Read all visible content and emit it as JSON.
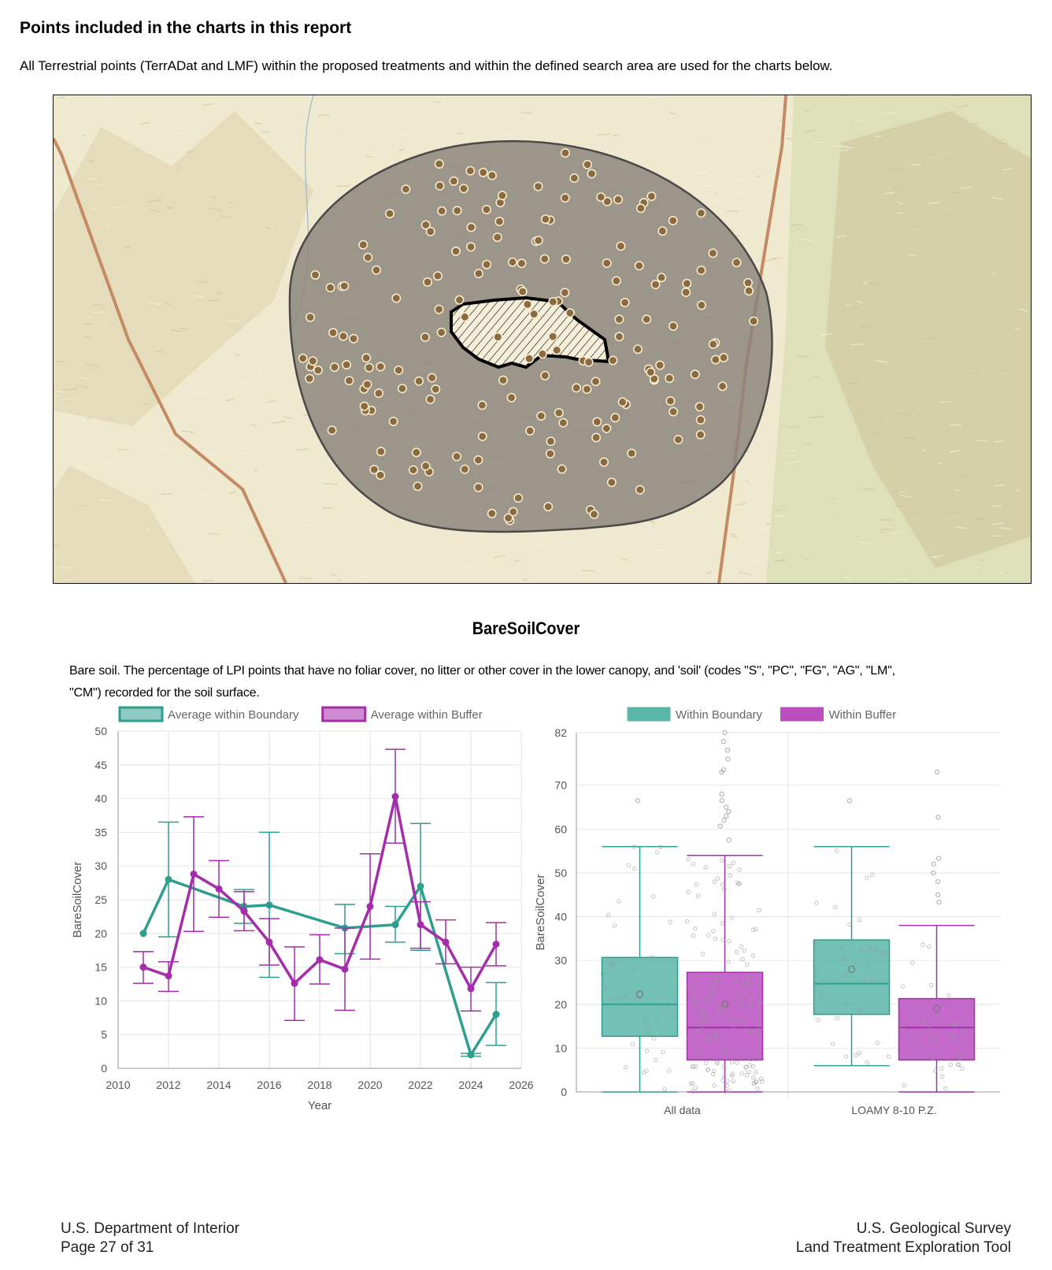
{
  "section": {
    "heading": "Points included in the charts in this report",
    "intro": "All Terrestrial points (TerrADat and LMF) within the proposed treatments and within the defined search area are used for the charts below."
  },
  "map": {
    "colors": {
      "land": "#efe9cf",
      "terrain_light": "#e2d8b6",
      "terrain_dark": "#cbbd94",
      "green_area": "#d6dcae",
      "road": "#c48a63",
      "buffer_fill": "#8a847a",
      "buffer_stroke": "#4a4a4a",
      "point_fill": "#8a6a3e",
      "point_stroke": "#f4ead0",
      "treatment_fill": "#f5efd9"
    }
  },
  "chart_title": "BareSoilCover",
  "description": {
    "line1": "Bare soil. The percentage of LPI points that have no foliar cover, no litter or other cover in the lower canopy, and 'soil' (codes \"S\", \"PC\", \"FG\", \"AG\", \"LM\",",
    "line2": "\"CM\") recorded for the soil surface."
  },
  "chart_data": [
    {
      "type": "line",
      "xlabel": "Year",
      "ylabel": "BareSoilCover",
      "xlim": [
        2010,
        2026
      ],
      "ylim": [
        0,
        50
      ],
      "x_ticks": [
        "2010",
        "2012",
        "2014",
        "2016",
        "2018",
        "2020",
        "2022",
        "2024",
        "2026"
      ],
      "y_ticks": [
        "0",
        "5",
        "10",
        "15",
        "20",
        "25",
        "30",
        "35",
        "40",
        "45",
        "50"
      ],
      "legend_position": "top",
      "grid": true,
      "series": [
        {
          "name": "Average within Boundary",
          "color": "#2e9e8f",
          "points": [
            {
              "x": 2011,
              "y": 20.0
            },
            {
              "x": 2012,
              "y": 28.0,
              "lo": 19.5,
              "hi": 36.5
            },
            {
              "x": 2015,
              "y": 24.0,
              "lo": 21.5,
              "hi": 26.5
            },
            {
              "x": 2016,
              "y": 24.2,
              "lo": 13.5,
              "hi": 35.0
            },
            {
              "x": 2019,
              "y": 20.8,
              "lo": 17.0,
              "hi": 24.3
            },
            {
              "x": 2021,
              "y": 21.3,
              "lo": 18.7,
              "hi": 24.0
            },
            {
              "x": 2022,
              "y": 27.0,
              "lo": 17.5,
              "hi": 36.3
            },
            {
              "x": 2024,
              "y": 2.0,
              "lo": 1.8,
              "hi": 2.2
            },
            {
              "x": 2025,
              "y": 8.0,
              "lo": 3.4,
              "hi": 12.7
            }
          ]
        },
        {
          "name": "Average within Buffer",
          "color": "#a52cab",
          "points": [
            {
              "x": 2011,
              "y": 15.0,
              "lo": 12.6,
              "hi": 17.3
            },
            {
              "x": 2012,
              "y": 13.7,
              "lo": 11.4,
              "hi": 15.8
            },
            {
              "x": 2013,
              "y": 28.8,
              "lo": 20.3,
              "hi": 37.3
            },
            {
              "x": 2014,
              "y": 26.6,
              "lo": 22.4,
              "hi": 30.8
            },
            {
              "x": 2015,
              "y": 23.3,
              "lo": 20.4,
              "hi": 26.2
            },
            {
              "x": 2016,
              "y": 18.7,
              "lo": 15.3,
              "hi": 22.2
            },
            {
              "x": 2017,
              "y": 12.6,
              "lo": 7.1,
              "hi": 18.0
            },
            {
              "x": 2018,
              "y": 16.1,
              "lo": 12.5,
              "hi": 19.8
            },
            {
              "x": 2019,
              "y": 14.7,
              "lo": 8.6,
              "hi": 20.8
            },
            {
              "x": 2020,
              "y": 24.0,
              "lo": 16.2,
              "hi": 31.8
            },
            {
              "x": 2021,
              "y": 40.3,
              "lo": 33.4,
              "hi": 47.3
            },
            {
              "x": 2022,
              "y": 21.3,
              "lo": 17.8,
              "hi": 24.7
            },
            {
              "x": 2023,
              "y": 18.7,
              "lo": 15.5,
              "hi": 22.0
            },
            {
              "x": 2024,
              "y": 11.8,
              "lo": 8.5,
              "hi": 15.0
            },
            {
              "x": 2025,
              "y": 18.4,
              "lo": 15.2,
              "hi": 21.6
            }
          ]
        }
      ]
    },
    {
      "type": "box",
      "ylabel": "BareSoilCover",
      "ylim": [
        0,
        82
      ],
      "y_ticks": [
        "0",
        "10",
        "20",
        "30",
        "40",
        "50",
        "60",
        "70",
        "82"
      ],
      "categories": [
        "All data",
        "LOAMY 8-10 P.Z."
      ],
      "legend_position": "top",
      "grid": true,
      "series": [
        {
          "name": "Within Boundary",
          "color": "#5bb5a8",
          "stroke": "#2e9e8f",
          "boxes": [
            {
              "min": 0,
              "q1": 12.7,
              "median": 20.0,
              "q3": 30.7,
              "max": 56.0,
              "mean": 22.3,
              "outliers": [
                66.5
              ]
            },
            {
              "min": 6.0,
              "q1": 17.7,
              "median": 24.7,
              "q3": 34.7,
              "max": 56.0,
              "mean": 28.0,
              "outliers": [
                66.5
              ]
            }
          ]
        },
        {
          "name": "Within Buffer",
          "color": "#b94fbf",
          "stroke": "#a52cab",
          "boxes": [
            {
              "min": 0,
              "q1": 7.3,
              "median": 14.7,
              "q3": 27.3,
              "max": 54.0,
              "mean": 20.0,
              "outliers": [
                57.5,
                60.7,
                62.0,
                63.0,
                64.0,
                65.0,
                66.5,
                68.0,
                73.0,
                73.5,
                76.0,
                78.0,
                80.0,
                82.0
              ]
            },
            {
              "min": 0,
              "q1": 7.3,
              "median": 14.7,
              "q3": 21.3,
              "max": 38.0,
              "mean": 19.0,
              "outliers": [
                43.3,
                45.0,
                48.0,
                50.0,
                52.0,
                53.3,
                62.7,
                73.0
              ]
            }
          ]
        }
      ]
    }
  ],
  "footer": {
    "left_line1": "U.S. Department of Interior",
    "left_line2": "Page 27 of 31",
    "right_line1": "U.S. Geological Survey",
    "right_line2": "Land Treatment Exploration Tool"
  }
}
